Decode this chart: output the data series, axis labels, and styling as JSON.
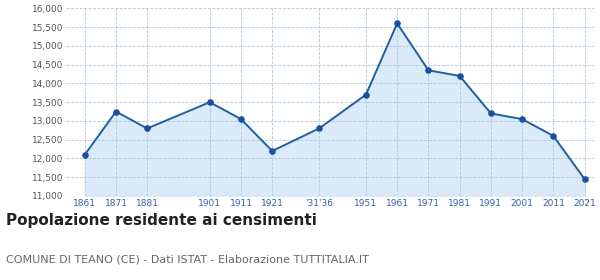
{
  "years": [
    1861,
    1871,
    1881,
    1901,
    1911,
    1921,
    1936,
    1951,
    1961,
    1971,
    1981,
    1991,
    2001,
    2011,
    2021
  ],
  "year_labels": [
    "1861",
    "1871",
    "1881",
    "1901",
    "1911",
    "1921",
    "'31'36",
    "1951",
    "1961",
    "1971",
    "1981",
    "1991",
    "2001",
    "2011",
    "2021"
  ],
  "population": [
    12100,
    13250,
    12800,
    13500,
    13050,
    12200,
    12800,
    13700,
    15600,
    14350,
    14200,
    13200,
    13050,
    12600,
    11450
  ],
  "ylim": [
    11000,
    16000
  ],
  "yticks": [
    11000,
    11500,
    12000,
    12500,
    13000,
    13500,
    14000,
    14500,
    15000,
    15500,
    16000
  ],
  "line_color": "#2060a0",
  "fill_color": "#daeaf8",
  "marker_color": "#1a50a0",
  "grid_color": "#b0c8e0",
  "title": "Popolazione residente ai censimenti",
  "subtitle": "COMUNE DI TEANO (CE) - Dati ISTAT - Elaborazione TUTTITALIA.IT",
  "title_fontsize": 11,
  "subtitle_fontsize": 8,
  "axis_label_color": "#3060a8",
  "background_color": "#ffffff",
  "plot_bg_color": "#ffffff"
}
